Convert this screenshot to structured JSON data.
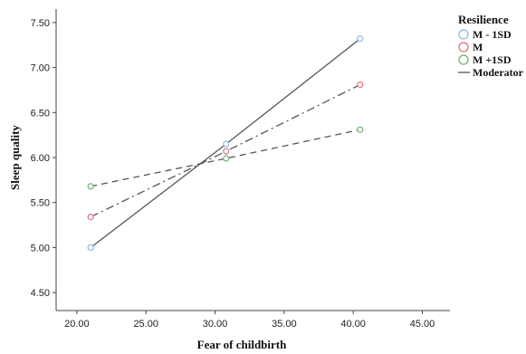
{
  "chart_data": {
    "type": "line",
    "xlabel": "Fear of childbirth",
    "ylabel": "Sleep quality",
    "xlim": [
      18.5,
      47
    ],
    "ylim": [
      4.3,
      7.65
    ],
    "x_ticks": [
      "20.00",
      "25.00",
      "30.00",
      "35.00",
      "40.00",
      "45.00"
    ],
    "y_ticks": [
      "4.50",
      "5.00",
      "5.50",
      "6.00",
      "6.50",
      "7.00",
      "7.50"
    ],
    "grid": false,
    "legend": {
      "title": "Resilience",
      "placement": "top-right",
      "line_label": "Moderator"
    },
    "series": [
      {
        "name": "M - 1SD",
        "marker_color": "#8fb8e6",
        "line_style": "solid",
        "points": [
          {
            "x": 21.0,
            "y": 5.0
          },
          {
            "x": 30.8,
            "y": 6.15
          },
          {
            "x": 40.5,
            "y": 7.32
          }
        ]
      },
      {
        "name": "M",
        "marker_color": "#e0707f",
        "line_style": "dash-dot",
        "points": [
          {
            "x": 21.0,
            "y": 5.34
          },
          {
            "x": 30.8,
            "y": 6.07
          },
          {
            "x": 40.5,
            "y": 6.81
          }
        ]
      },
      {
        "name": "M +1SD",
        "marker_color": "#6cb36c",
        "line_style": "dashed",
        "points": [
          {
            "x": 21.0,
            "y": 5.68
          },
          {
            "x": 30.8,
            "y": 5.99
          },
          {
            "x": 40.5,
            "y": 6.31
          }
        ]
      }
    ],
    "line_color": "#555555"
  }
}
